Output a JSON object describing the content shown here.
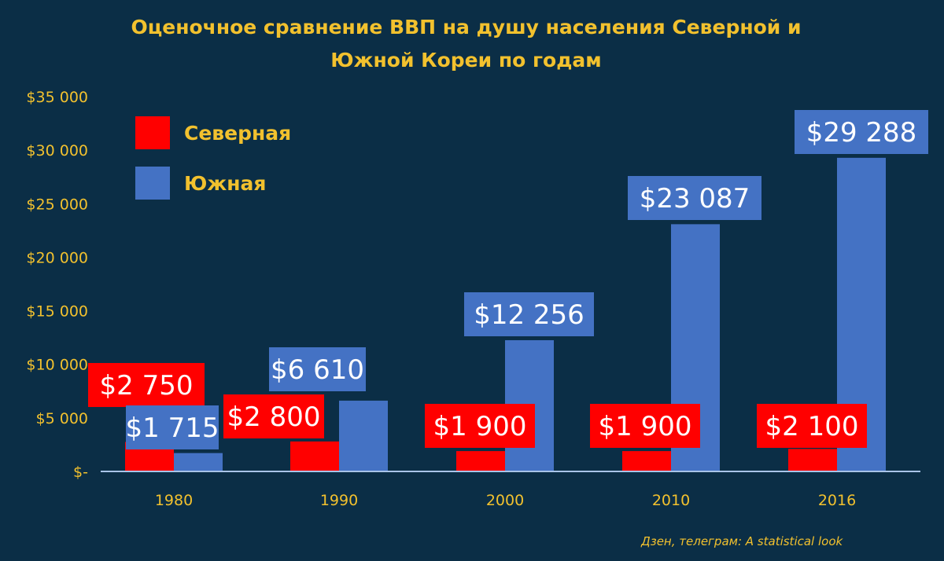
{
  "chart_data": {
    "type": "bar",
    "title_lines": [
      "Оценочное сравнение ВВП на душу населения Северной и",
      "Южной Кореи по годам"
    ],
    "categories": [
      "1980",
      "1990",
      "2000",
      "2010",
      "2016"
    ],
    "series": [
      {
        "name": "Северная",
        "color": "#ff0000",
        "values": [
          2750,
          2800,
          1900,
          1900,
          2100
        ],
        "labels": [
          "$2 750",
          "$2 800",
          "$1 900",
          "$1 900",
          "$2 100"
        ]
      },
      {
        "name": "Южная",
        "color": "#4472c4",
        "values": [
          1715,
          6610,
          12256,
          23087,
          29288
        ],
        "labels": [
          "$1 715",
          "$6 610",
          "$12 256",
          "$23 087",
          "$29 288"
        ]
      }
    ],
    "ylim": [
      0,
      35000
    ],
    "yticks": [
      0,
      5000,
      10000,
      15000,
      20000,
      25000,
      30000,
      35000
    ],
    "ytick_labels": [
      "$-",
      "$5 000",
      "$10 000",
      "$15 000",
      "$20 000",
      "$25 000",
      "$30 000",
      "$35 000"
    ],
    "grid": false,
    "legend_position": "top-left",
    "background": "#0b2e46",
    "text_color": "#f2c12e"
  },
  "footer": "Дзен, телеграм: A statistical look"
}
